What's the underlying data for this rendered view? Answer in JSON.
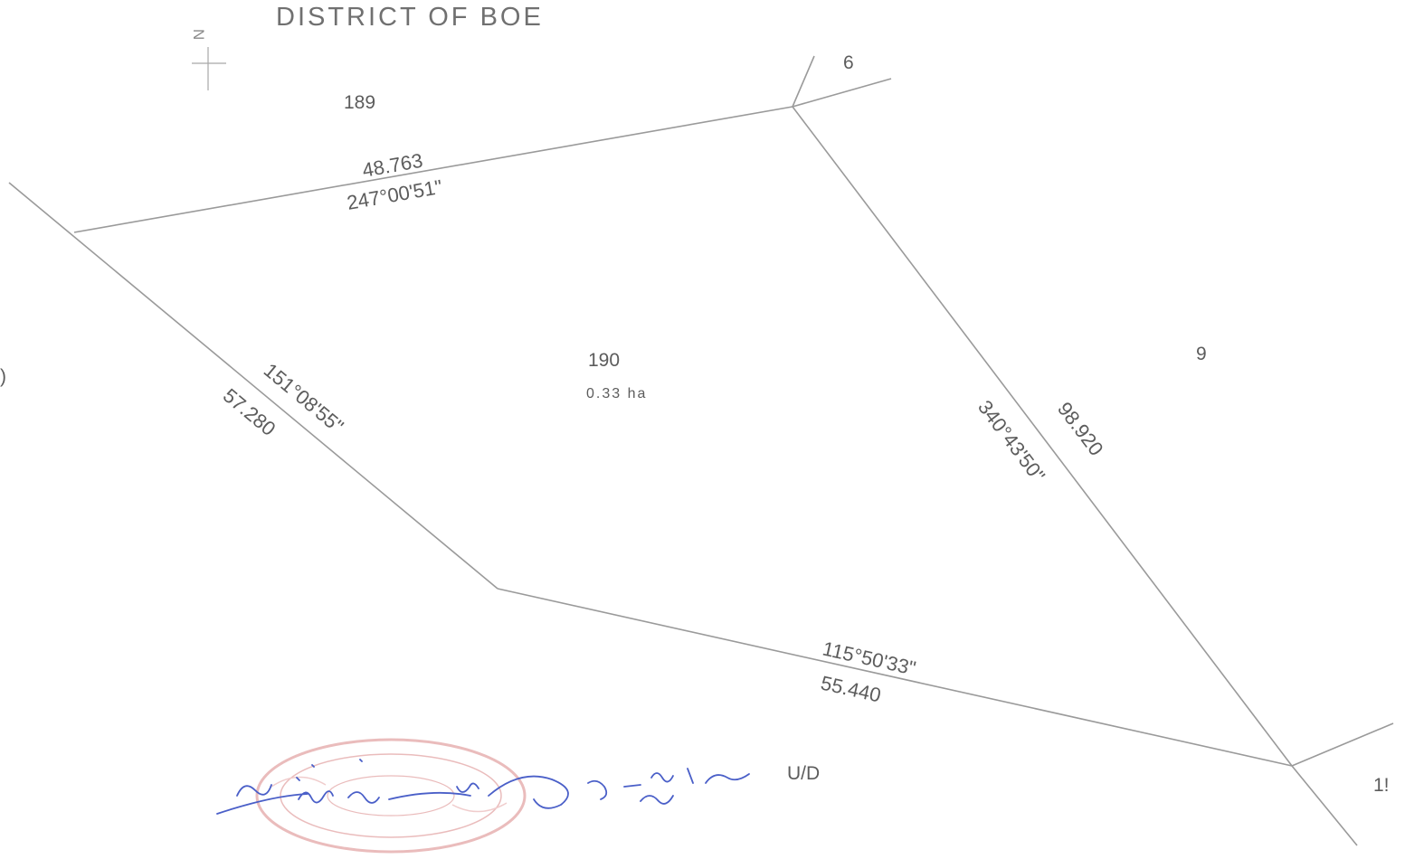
{
  "plan": {
    "title": "DISTRICT OF BOE",
    "north_arrow_label": "N",
    "subject_parcel": {
      "number": "190",
      "area": "0.33  ha"
    },
    "adjoining_parcels": {
      "north": "189",
      "northeast": "6",
      "east": "9",
      "southeast_cut": "1!",
      "west_cut": ")",
      "south": "U/D"
    },
    "boundaries": {
      "north": {
        "distance": "48.763",
        "bearing": "247°00'51\""
      },
      "west": {
        "distance": "57.280",
        "bearing": "151°08'55\""
      },
      "east": {
        "distance": "98.920",
        "bearing": "340°43'50\""
      },
      "south": {
        "distance": "55.440",
        "bearing": "115°50'33\""
      }
    },
    "colors": {
      "boundary_line": "#9a9a9a",
      "text": "#5c5c5c",
      "stamp": "#e3a6a6",
      "signature_ink": "#4a5fc8"
    }
  }
}
